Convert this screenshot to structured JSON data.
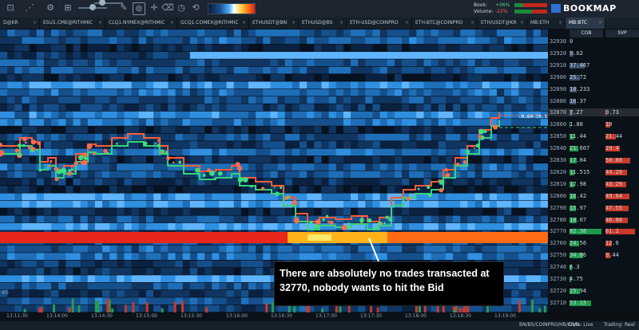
{
  "app": {
    "name": "BOOKMAP"
  },
  "header": {
    "book_label": "Book:",
    "book_value": "+06%",
    "volume_label": "Volume:",
    "volume_value": "-22%"
  },
  "toolbar_icons": [
    "layout-icon",
    "share-icon",
    "settings-icon",
    "brush-icon",
    "lock-icon",
    "crosshair-icon",
    "eraser-icon",
    "timer-icon",
    "replay-icon",
    "grid-icon"
  ],
  "tabs": [
    {
      "label": "D@KR",
      "active": false
    },
    {
      "label": "ESU1.CME@RITHMIC",
      "active": false
    },
    {
      "label": "CLQ1.NYMEX@RITHMIC",
      "active": false
    },
    {
      "label": "GCQ1.COMEX@RITHMIC",
      "active": false
    },
    {
      "label": "ETHUSDT@BN",
      "active": false
    },
    {
      "label": "ETHUSD@BS",
      "active": false
    },
    {
      "label": "ETH-USD@COINPRO",
      "active": false
    },
    {
      "label": "ETH-BTC@COINPRO",
      "active": false
    },
    {
      "label": "ETH/USDT@KR",
      "active": false
    },
    {
      "label": "MB:ETH",
      "active": false
    },
    {
      "label": "MB:BTC",
      "active": true
    }
  ],
  "ladder": {
    "headers": {
      "cob": "COB",
      "svp": "SVP"
    },
    "rows": [
      {
        "price": "32930",
        "cob": "0",
        "svp": ""
      },
      {
        "price": "32920",
        "cob": "9.62",
        "svp": ""
      },
      {
        "price": "32910",
        "cob": "37.467",
        "svp": ""
      },
      {
        "price": "32900",
        "cob": "25.72",
        "svp": ""
      },
      {
        "price": "32890",
        "cob": "18.233",
        "svp": ""
      },
      {
        "price": "32880",
        "cob": "16.37",
        "svp": ""
      },
      {
        "price": "32870",
        "cob": "7.27",
        "svp": "0.73"
      },
      {
        "price": "32860",
        "cob": "1.88",
        "svp": "10"
      },
      {
        "price": "32850",
        "cob": "11.44",
        "svp": "21.44"
      },
      {
        "price": "32840",
        "cob": "21.607",
        "svp": "29.4"
      },
      {
        "price": "32830",
        "cob": "17.84",
        "svp": "50.88"
      },
      {
        "price": "32820",
        "cob": "11.515",
        "svp": "44.29"
      },
      {
        "price": "32810",
        "cob": "12.98",
        "svp": "43.29"
      },
      {
        "price": "32800",
        "cob": "16.42",
        "svp": "49.64"
      },
      {
        "price": "32790",
        "cob": "15.97",
        "svp": "47.55"
      },
      {
        "price": "32780",
        "cob": "18.07",
        "svp": "46.88"
      },
      {
        "price": "32770",
        "cob": "82.38",
        "svp": "61.2"
      },
      {
        "price": "32760",
        "cob": "24.56",
        "svp": "12.6"
      },
      {
        "price": "32750",
        "cob": "34.06",
        "svp": "9.44"
      },
      {
        "price": "32740",
        "cob": "6.3",
        "svp": ""
      },
      {
        "price": "32730",
        "cob": "4.75",
        "svp": ""
      },
      {
        "price": "32720",
        "cob": "25.94",
        "svp": ""
      },
      {
        "price": "32710",
        "cob": "53.15",
        "svp": ""
      }
    ]
  },
  "price_marker": {
    "label": "-0.64 (0.1)"
  },
  "time_axis": [
    "13:11:30",
    "13:14:00",
    "13:14:30",
    "13:15:00",
    "13:15:30",
    "13:16:00",
    "13:16:30",
    "13:17:00",
    "13:17:30",
    "13:18:00",
    "13:18:30",
    "13:19:00"
  ],
  "left_marker": "45",
  "annotation": {
    "text": "There are absolutely no trades transacted at 32770, nobody wants to hit the Bid"
  },
  "status": {
    "instruments": "BN/BS/COINPRO/HB/KR/R",
    "data": "Data: Live",
    "trading": "Trading: Real"
  },
  "colors": {
    "buy": "#36d17a",
    "sell": "#ff5a36",
    "bid_wall": "#e8261a",
    "heatmap_low": "#0e3566",
    "heatmap_mid": "#2a8fe0"
  }
}
